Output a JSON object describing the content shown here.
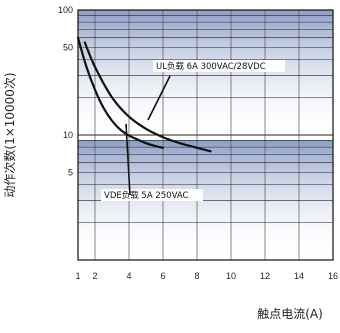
{
  "chart_data": {
    "type": "line",
    "xlabel": "触点电流(A)",
    "ylabel": "动作次数(1×10000次)",
    "x_ticks": [
      "1",
      "2",
      "4",
      "6",
      "8",
      "10",
      "12",
      "14",
      "16"
    ],
    "y_ticks": [
      "100",
      "50",
      "10",
      "5"
    ],
    "xlim": [
      1,
      16
    ],
    "ylim": [
      1,
      100
    ],
    "y_scale": "log",
    "grid": true,
    "series": [
      {
        "name": "UL负载  6A 300VAC/28VDC",
        "x": [
          1.4,
          2,
          3,
          4,
          5,
          6,
          7,
          8,
          8.8
        ],
        "y": [
          55,
          35,
          20,
          14,
          11.2,
          9.6,
          8.6,
          7.9,
          7.4
        ]
      },
      {
        "name": "VDE负载  5A 250VAC",
        "x": [
          1,
          1.5,
          2,
          2.5,
          3,
          3.5,
          4,
          4.5,
          5,
          5.5,
          6
        ],
        "y": [
          60,
          35,
          23,
          16.5,
          13,
          11,
          9.9,
          9.2,
          8.6,
          8.2,
          7.9
        ]
      }
    ],
    "annotations": [
      {
        "text": "UL负载  6A 300VAC/28VDC",
        "target_series": 0
      },
      {
        "text": "VDE负载  5A 250VAC",
        "target_series": 1
      }
    ]
  }
}
